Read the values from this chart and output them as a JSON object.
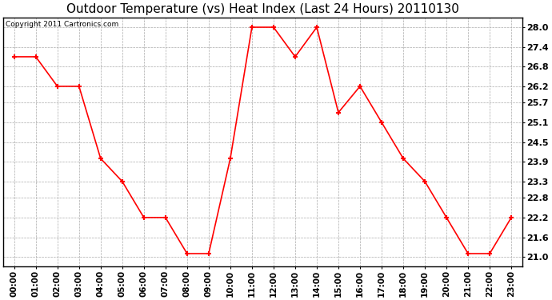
{
  "title": "Outdoor Temperature (vs) Heat Index (Last 24 Hours) 20110130",
  "copyright": "Copyright 2011 Cartronics.com",
  "x_labels": [
    "00:00",
    "01:00",
    "02:00",
    "03:00",
    "04:00",
    "05:00",
    "06:00",
    "07:00",
    "08:00",
    "09:00",
    "10:00",
    "11:00",
    "12:00",
    "13:00",
    "14:00",
    "15:00",
    "16:00",
    "17:00",
    "18:00",
    "19:00",
    "20:00",
    "21:00",
    "22:00",
    "23:00"
  ],
  "y_values": [
    27.1,
    27.1,
    26.2,
    26.2,
    24.0,
    23.3,
    22.2,
    22.2,
    21.1,
    21.1,
    24.0,
    28.0,
    28.0,
    27.1,
    28.0,
    25.4,
    26.2,
    25.1,
    24.0,
    23.3,
    22.2,
    21.1,
    21.1,
    22.2
  ],
  "ylim_min": 20.7,
  "ylim_max": 28.3,
  "yticks": [
    21.0,
    21.6,
    22.2,
    22.8,
    23.3,
    23.9,
    24.5,
    25.1,
    25.7,
    26.2,
    26.8,
    27.4,
    28.0
  ],
  "line_color": "#ff0000",
  "marker": "+",
  "marker_size": 5,
  "marker_linewidth": 1.5,
  "line_width": 1.2,
  "background_color": "#ffffff",
  "plot_bg_color": "#ffffff",
  "grid_color": "#aaaaaa",
  "grid_style": "--",
  "title_fontsize": 11,
  "copyright_fontsize": 6.5,
  "tick_fontsize": 7.5,
  "ytick_fontsize": 8
}
